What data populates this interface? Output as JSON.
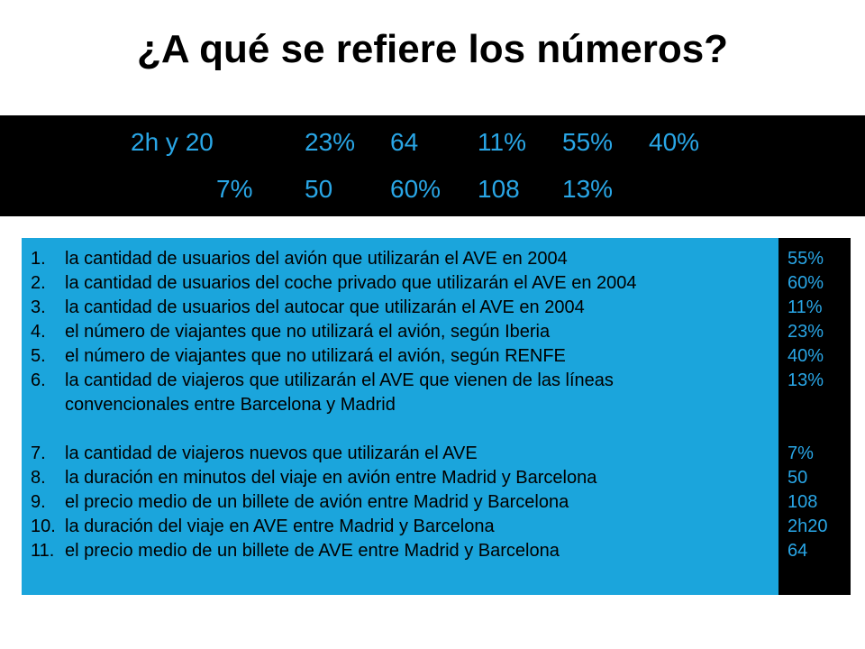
{
  "title": "¿A qué se refiere los números?",
  "numbers_row1": [
    "2h y 20",
    "23%",
    "64",
    "11%",
    "55%",
    "40%"
  ],
  "numbers_row2": [
    "7%",
    "50",
    "60%",
    "108",
    "13%"
  ],
  "items": [
    {
      "num": "1.",
      "text": "la cantidad de usuarios del avión que utilizarán el AVE en 2004"
    },
    {
      "num": "2.",
      "text": "la cantidad de usuarios del coche privado que utilizarán el AVE en 2004"
    },
    {
      "num": "3.",
      "text": "la cantidad de usuarios del autocar que utilizarán el AVE en 2004"
    },
    {
      "num": "4.",
      "text": "el número de viajantes que no utilizará el avión, según Iberia"
    },
    {
      "num": "5.",
      "text": "el número de viajantes que no utilizará el avión, según RENFE"
    },
    {
      "num": "6.",
      "text": "la cantidad de viajeros que utilizarán el AVE que vienen de las líneas convencionales entre Barcelona y Madrid"
    },
    {
      "num": "7.",
      "text": "la cantidad de viajeros nuevos que utilizarán el AVE"
    },
    {
      "num": "8.",
      "text": "la duración en minutos del viaje en avión entre Madrid y Barcelona"
    },
    {
      "num": "9.",
      "text": "el precio medio de un billete de avión entre Madrid y Barcelona"
    },
    {
      "num": "10.",
      "text": "la duración del viaje en AVE entre Madrid y Barcelona"
    },
    {
      "num": "11.",
      "text": "el precio medio de un billete de AVE entre Madrid y Barcelona"
    }
  ],
  "answers": [
    "55%",
    "60%",
    "11%",
    "23%",
    "40%",
    "13%",
    "7%",
    "50",
    "108",
    "2h20",
    "64"
  ],
  "colors": {
    "accent": "#29a6e6",
    "panel": "#1ba5dc",
    "band": "#000000"
  }
}
